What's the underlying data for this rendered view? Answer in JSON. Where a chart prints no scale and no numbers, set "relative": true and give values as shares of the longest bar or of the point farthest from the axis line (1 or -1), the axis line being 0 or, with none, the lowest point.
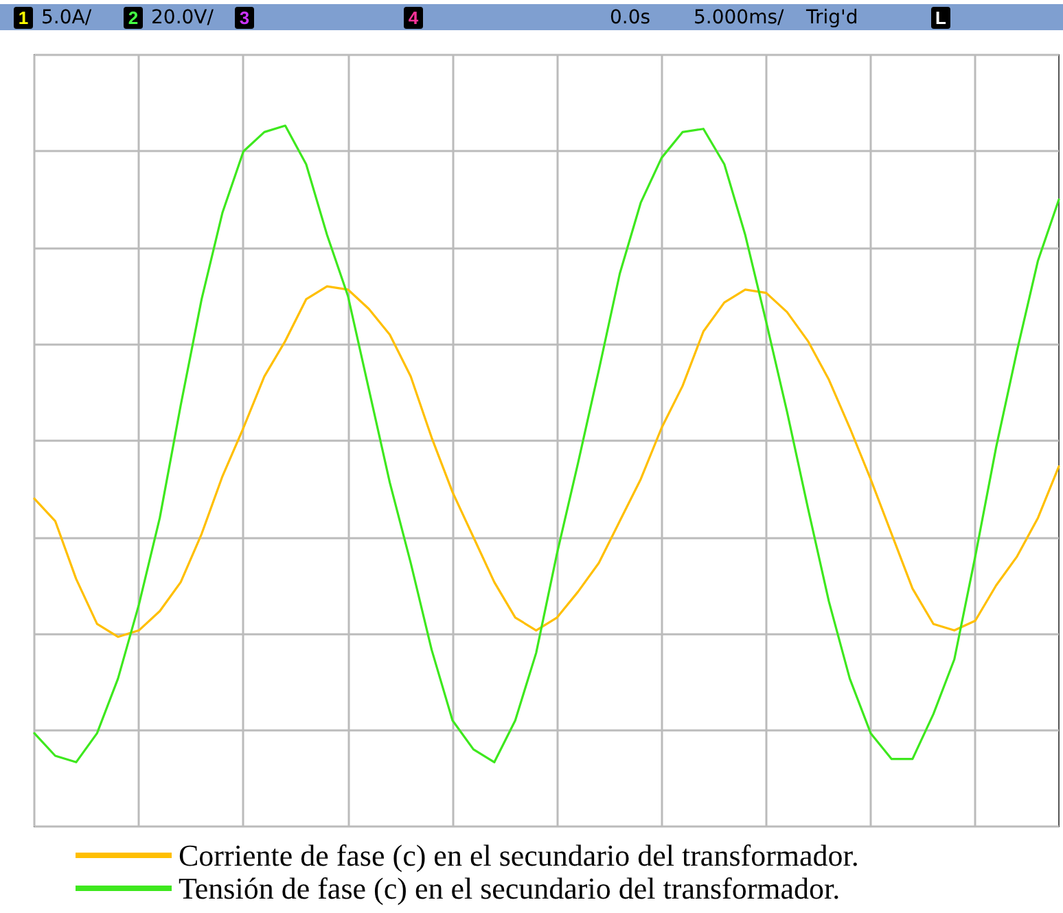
{
  "chart_data": {
    "type": "line",
    "relative": true,
    "grid": true,
    "legend": "bottom",
    "marker": "none",
    "line_style": "solid",
    "annotations": [
      "1",
      "5.0A/",
      "2",
      "20.0V/",
      "3",
      "4",
      "0.0s",
      "5.000ms/",
      "Trig'd",
      "L"
    ],
    "categories": [
      null,
      null,
      null,
      null,
      null,
      null,
      null,
      null,
      null,
      null,
      null,
      null,
      null,
      null,
      null,
      null,
      null,
      null,
      null,
      null,
      null,
      null,
      null,
      null,
      null,
      null,
      null,
      null,
      null,
      null,
      null,
      null,
      null,
      null,
      null,
      null,
      null,
      null,
      null,
      null,
      null,
      null,
      null,
      null,
      null,
      null,
      null,
      null,
      null,
      null
    ],
    "series": [
      {
        "name": "Corriente de fase (c) en el secundario del transformador.",
        "color": "#ffbf00",
        "values": [
          -0.18,
          -0.25,
          -0.43,
          -0.57,
          -0.61,
          -0.59,
          -0.53,
          -0.44,
          -0.29,
          -0.11,
          0.04,
          0.2,
          0.31,
          0.44,
          0.48,
          0.47,
          0.41,
          0.33,
          0.2,
          0.01,
          -0.16,
          -0.3,
          -0.44,
          -0.55,
          -0.59,
          -0.55,
          -0.47,
          -0.38,
          -0.25,
          -0.12,
          0.04,
          0.17,
          0.34,
          0.43,
          0.47,
          0.46,
          0.4,
          0.31,
          0.19,
          0.04,
          -0.12,
          -0.29,
          -0.46,
          -0.57,
          -0.59,
          -0.56,
          -0.45,
          -0.36,
          -0.24,
          -0.08
        ]
      },
      {
        "name": "Tensión de fase (c) en el secundario del transformador.",
        "color": "#3ee81e",
        "values": [
          -0.91,
          -0.98,
          -1,
          -0.91,
          -0.74,
          -0.51,
          -0.24,
          0.11,
          0.44,
          0.71,
          0.9,
          0.96,
          0.98,
          0.86,
          0.64,
          0.45,
          0.16,
          -0.13,
          -0.38,
          -0.65,
          -0.87,
          -0.96,
          -1,
          -0.87,
          -0.66,
          -0.35,
          -0.07,
          0.22,
          0.52,
          0.74,
          0.88,
          0.96,
          0.97,
          0.86,
          0.64,
          0.37,
          0.09,
          -0.21,
          -0.5,
          -0.74,
          -0.91,
          -0.99,
          -0.99,
          -0.85,
          -0.68,
          -0.36,
          -0.02,
          0.28,
          0.56,
          0.75
        ]
      }
    ]
  }
}
